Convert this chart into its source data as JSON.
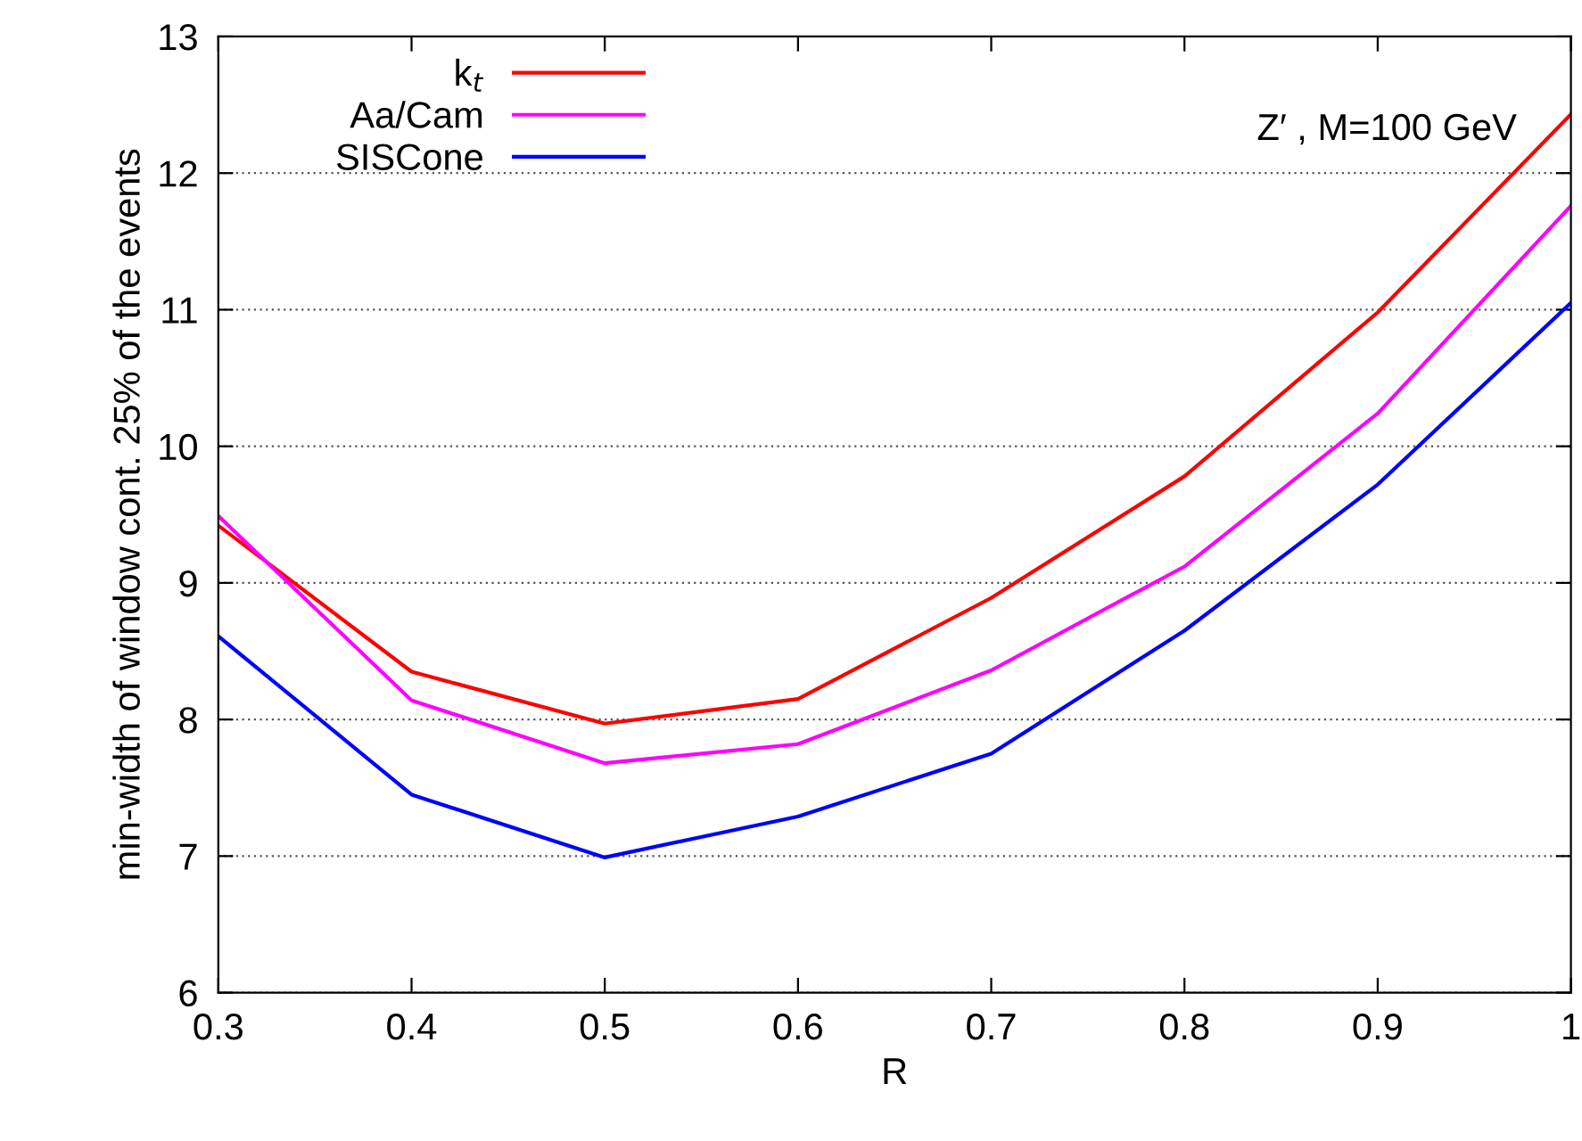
{
  "chart_data": {
    "type": "line",
    "xlabel": "R",
    "ylabel": "min-width of window cont. 25% of the events",
    "x": [
      0.3,
      0.4,
      0.5,
      0.6,
      0.7,
      0.8,
      0.9,
      1.0
    ],
    "series": [
      {
        "name": "k$_{t}$",
        "color": "#ff0000",
        "values": [
          9.42,
          8.35,
          7.97,
          8.15,
          8.89,
          9.78,
          10.98,
          12.43
        ]
      },
      {
        "name": "Aa/Cam",
        "color": "#ff00ff",
        "values": [
          9.49,
          8.14,
          7.68,
          7.82,
          8.36,
          9.12,
          10.24,
          11.76
        ]
      },
      {
        "name": "SISCone",
        "color": "#0000ff",
        "values": [
          8.61,
          7.45,
          6.99,
          7.29,
          7.75,
          8.65,
          9.72,
          11.05
        ]
      }
    ],
    "annotations": [
      "Z′ , M=100 GeV"
    ],
    "xlim": [
      0.3,
      1.0
    ],
    "xticks": [
      0.3,
      0.4,
      0.5,
      0.6,
      0.7,
      0.8,
      0.9,
      {
        "value": 1.0,
        "label": "1"
      }
    ],
    "ylim": [
      6,
      13
    ],
    "yticks": [
      6,
      7,
      8,
      9,
      10,
      11,
      12,
      13
    ],
    "grid": "y",
    "legend": "top left",
    "marker": "none",
    "line_style": "solid"
  }
}
